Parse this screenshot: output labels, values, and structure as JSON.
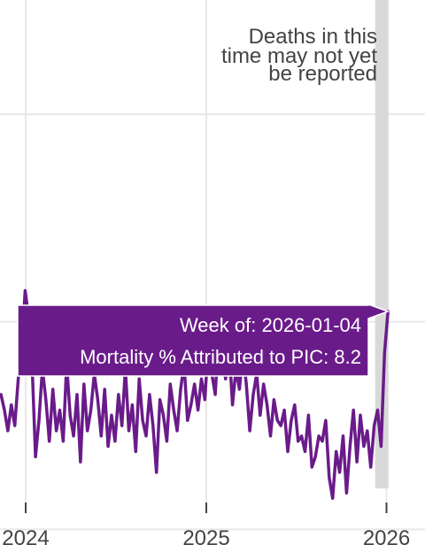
{
  "chart_data": {
    "type": "line",
    "title": "",
    "xlabel": "",
    "ylabel": "",
    "x_tick_labels": [
      "2024",
      "2025",
      "2026"
    ],
    "grid": true,
    "series": [
      {
        "color": "#6a1b8a",
        "x": [
          "2023-11-12",
          "2023-11-19",
          "2023-11-26",
          "2023-12-03",
          "2023-12-10",
          "2023-12-17",
          "2023-12-24",
          "2023-12-31",
          "2024-01-07",
          "2024-01-14",
          "2024-01-21",
          "2024-01-28",
          "2024-02-04",
          "2024-02-11",
          "2024-02-18",
          "2024-02-25",
          "2024-03-03",
          "2024-03-10",
          "2024-03-17",
          "2024-03-24",
          "2024-03-31",
          "2024-04-07",
          "2024-04-14",
          "2024-04-21",
          "2024-04-28",
          "2024-05-05",
          "2024-05-12",
          "2024-05-19",
          "2024-05-26",
          "2024-06-02",
          "2024-06-09",
          "2024-06-16",
          "2024-06-23",
          "2024-06-30",
          "2024-07-07",
          "2024-07-14",
          "2024-07-21",
          "2024-07-28",
          "2024-08-04",
          "2024-08-11",
          "2024-08-18",
          "2024-08-25",
          "2024-09-01",
          "2024-09-08",
          "2024-09-15",
          "2024-09-22",
          "2024-09-29",
          "2024-10-06",
          "2024-10-13",
          "2024-10-20",
          "2024-10-27",
          "2024-11-03",
          "2024-11-10",
          "2024-11-17",
          "2024-11-24",
          "2024-12-01",
          "2024-12-08",
          "2024-12-15",
          "2024-12-22",
          "2024-12-29",
          "2025-01-05",
          "2025-01-12",
          "2025-01-19",
          "2025-01-26",
          "2025-02-02",
          "2025-02-09",
          "2025-02-16",
          "2025-02-23",
          "2025-03-02",
          "2025-03-09",
          "2025-03-16",
          "2025-03-23",
          "2025-03-30",
          "2025-04-06",
          "2025-04-13",
          "2025-04-20",
          "2025-04-27",
          "2025-05-04",
          "2025-05-11",
          "2025-05-18",
          "2025-05-25",
          "2025-06-01",
          "2025-06-08",
          "2025-06-15",
          "2025-06-22",
          "2025-06-29",
          "2025-07-06",
          "2025-07-13",
          "2025-07-20",
          "2025-07-27",
          "2025-08-03",
          "2025-08-10",
          "2025-08-17",
          "2025-08-24",
          "2025-08-31",
          "2025-09-07",
          "2025-09-14",
          "2025-09-21",
          "2025-09-28",
          "2025-10-05",
          "2025-10-12",
          "2025-10-19",
          "2025-10-26",
          "2025-11-02",
          "2025-11-09",
          "2025-11-16",
          "2025-11-23",
          "2025-11-30",
          "2025-12-07",
          "2025-12-14",
          "2025-12-21",
          "2025-12-28",
          "2026-01-04"
        ],
        "y": [
          6.6,
          6.3,
          5.9,
          6.4,
          6.0,
          6.9,
          7.5,
          8.6,
          8.1,
          7.2,
          5.4,
          6.1,
          7.1,
          6.5,
          5.7,
          6.7,
          5.9,
          6.3,
          5.7,
          7.2,
          6.2,
          5.8,
          6.6,
          5.3,
          6.8,
          5.9,
          6.3,
          7.0,
          6.5,
          5.8,
          6.7,
          5.6,
          6.2,
          5.7,
          6.6,
          6.0,
          7.1,
          5.9,
          6.4,
          5.5,
          6.9,
          6.1,
          5.8,
          6.6,
          6.0,
          5.1,
          6.5,
          6.2,
          5.7,
          6.8,
          6.3,
          5.9,
          6.7,
          7.2,
          6.1,
          6.4,
          6.8,
          6.3,
          6.9,
          6.5,
          7.6,
          7.0,
          6.6,
          7.8,
          7.3,
          6.9,
          7.5,
          6.4,
          7.1,
          6.7,
          7.4,
          6.8,
          5.9,
          6.6,
          7.0,
          6.2,
          6.8,
          6.4,
          5.8,
          6.5,
          6.1,
          6.0,
          6.3,
          5.5,
          6.1,
          6.4,
          5.7,
          5.8,
          5.5,
          6.2,
          5.2,
          5.4,
          5.8,
          5.7,
          6.1,
          5.0,
          4.6,
          5.5,
          5.1,
          5.8,
          4.7,
          5.6,
          6.3,
          5.3,
          6.2,
          5.6,
          5.9,
          5.2,
          6.0,
          6.3,
          5.6,
          7.4,
          8.2
        ]
      }
    ],
    "xlim": [
      "2023-11-10",
      "2026-03-20"
    ],
    "ylim": [
      3.7,
      14.2
    ],
    "y_gridlines": [
      4,
      8,
      12,
      16
    ],
    "x_gridlines": [
      "2024-01-01",
      "2025-01-01",
      "2026-01-01"
    ],
    "shaded_region": [
      "2025-12-09",
      "2026-01-05"
    ],
    "annotation": {
      "lines": [
        "Deaths in this",
        "time may not yet",
        "be reported"
      ]
    },
    "tooltip": {
      "week_label": "Week of: 2026-01-04",
      "value_label": "Mortality % Attributed to PIC:  8.2",
      "x": "2026-01-04",
      "y": 8.2,
      "bg_color": "#6a1b8a"
    }
  }
}
